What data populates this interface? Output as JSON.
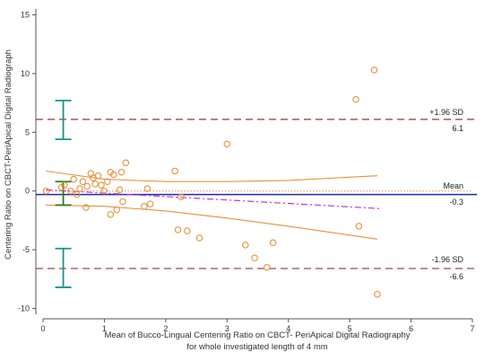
{
  "chart_data": {
    "type": "scatter",
    "title": "",
    "xlabel": "Mean of Bucco-Lingual Centering Ratio on CBCT- PeriApical Digital Radiography",
    "xlabel_line2": "for whole investigated length of 4 mm",
    "ylabel": "Centering Ratio on CBCT-PeriApical Digital Radiograph",
    "xlim": [
      0,
      7
    ],
    "ylim": [
      -10.5,
      15.5
    ],
    "x_ticks": [
      0,
      1,
      2,
      3,
      4,
      5,
      6,
      7
    ],
    "y_ticks": [
      15,
      10,
      5,
      0,
      -5,
      -10
    ],
    "grid": false,
    "colors": {
      "points": "#e8913a",
      "mean_line": "#1f2aa8",
      "sd_lines": "#9b4a43",
      "ci_bars": "#1f8f8f",
      "mean_ci_bar": "#2e7d1a",
      "regression": "#cc33cc",
      "confidence_band": "#e8913a",
      "zero_line": "#e8913a"
    },
    "points": [
      {
        "x": 0.05,
        "y": 0.0
      },
      {
        "x": 0.3,
        "y": 0.3
      },
      {
        "x": 0.35,
        "y": 0.5
      },
      {
        "x": 0.45,
        "y": 0.0
      },
      {
        "x": 0.5,
        "y": 1.0
      },
      {
        "x": 0.55,
        "y": -0.3
      },
      {
        "x": 0.6,
        "y": 0.2
      },
      {
        "x": 0.65,
        "y": 0.8
      },
      {
        "x": 0.7,
        "y": -1.4
      },
      {
        "x": 0.72,
        "y": 0.4
      },
      {
        "x": 0.78,
        "y": 1.5
      },
      {
        "x": 0.82,
        "y": 1.1
      },
      {
        "x": 0.85,
        "y": 0.6
      },
      {
        "x": 0.9,
        "y": 1.3
      },
      {
        "x": 0.95,
        "y": 0.5
      },
      {
        "x": 1.0,
        "y": 0.0
      },
      {
        "x": 1.05,
        "y": 0.8
      },
      {
        "x": 1.1,
        "y": 1.6
      },
      {
        "x": 1.15,
        "y": 1.4
      },
      {
        "x": 1.1,
        "y": -2.0
      },
      {
        "x": 1.2,
        "y": -1.6
      },
      {
        "x": 1.25,
        "y": 0.1
      },
      {
        "x": 1.28,
        "y": 1.6
      },
      {
        "x": 1.3,
        "y": -0.9
      },
      {
        "x": 1.35,
        "y": 2.4
      },
      {
        "x": 1.65,
        "y": -1.3
      },
      {
        "x": 1.7,
        "y": 0.2
      },
      {
        "x": 1.75,
        "y": -1.1
      },
      {
        "x": 2.15,
        "y": 1.7
      },
      {
        "x": 2.2,
        "y": -3.3
      },
      {
        "x": 2.25,
        "y": -0.5
      },
      {
        "x": 2.35,
        "y": -3.4
      },
      {
        "x": 2.55,
        "y": -4.0
      },
      {
        "x": 3.0,
        "y": 4.0
      },
      {
        "x": 3.3,
        "y": -4.6
      },
      {
        "x": 3.45,
        "y": -5.7
      },
      {
        "x": 3.65,
        "y": -6.5
      },
      {
        "x": 3.75,
        "y": -4.4
      },
      {
        "x": 5.1,
        "y": 7.8
      },
      {
        "x": 5.15,
        "y": -3.0
      },
      {
        "x": 5.4,
        "y": 10.3
      },
      {
        "x": 5.45,
        "y": -8.8
      }
    ],
    "mean": -0.3,
    "upper_sd": 6.1,
    "lower_sd": -6.6,
    "regression_line": [
      [
        0.05,
        0.1
      ],
      [
        5.5,
        -1.5
      ]
    ],
    "upper_band": [
      [
        0.05,
        1.7
      ],
      [
        1.0,
        1.0
      ],
      [
        2.0,
        0.8
      ],
      [
        3.0,
        0.8
      ],
      [
        4.0,
        0.9
      ],
      [
        5.45,
        1.3
      ]
    ],
    "lower_band": [
      [
        0.05,
        -1.2
      ],
      [
        1.0,
        -1.3
      ],
      [
        2.0,
        -1.7
      ],
      [
        3.0,
        -2.3
      ],
      [
        4.0,
        -3.0
      ],
      [
        5.45,
        -4.1
      ]
    ],
    "ci_bars": [
      {
        "x": 0.33,
        "low": 4.4,
        "high": 7.7
      },
      {
        "x": 0.33,
        "low": -1.2,
        "high": 0.8
      },
      {
        "x": 0.33,
        "low": -8.2,
        "high": -4.9
      }
    ],
    "annotations": {
      "upper_label": "+1.96 SD",
      "upper_value": "6.1",
      "mean_label": "Mean",
      "mean_value": "-0.3",
      "lower_label": "-1.96 SD",
      "lower_value": "-6.6"
    }
  }
}
